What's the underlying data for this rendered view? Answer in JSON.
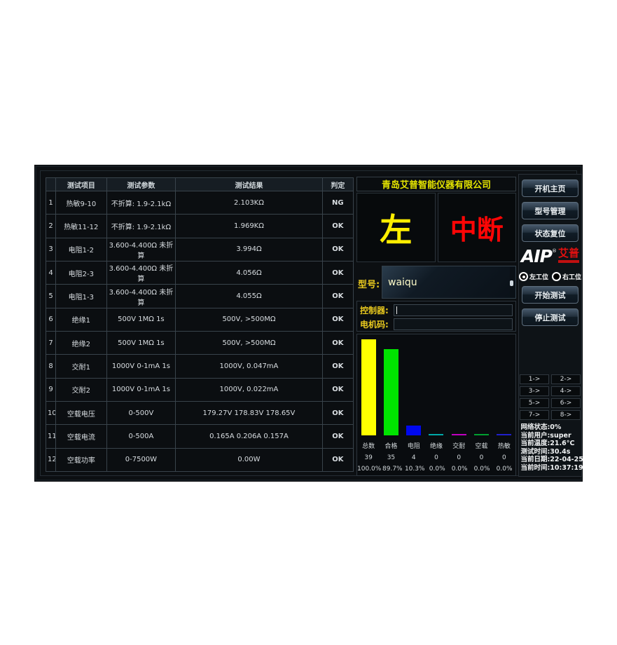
{
  "table": {
    "headers": {
      "item": "测试项目",
      "param": "测试参数",
      "result": "测试结果",
      "judge": "判定"
    },
    "rows": [
      {
        "no": "1",
        "item": "热敏9-10",
        "param": "不折算: 1.9-2.1kΩ",
        "result": "2.103KΩ",
        "judge": "NG"
      },
      {
        "no": "2",
        "item": "热敏11-12",
        "param": "不折算: 1.9-2.1kΩ",
        "result": "1.969KΩ",
        "judge": "OK"
      },
      {
        "no": "3",
        "item": "电阻1-2",
        "param": "3.600-4.400Ω 未折算",
        "result": "3.994Ω",
        "judge": "OK"
      },
      {
        "no": "4",
        "item": "电阻2-3",
        "param": "3.600-4.400Ω 未折算",
        "result": "4.056Ω",
        "judge": "OK"
      },
      {
        "no": "5",
        "item": "电阻1-3",
        "param": "3.600-4.400Ω 未折算",
        "result": "4.055Ω",
        "judge": "OK"
      },
      {
        "no": "6",
        "item": "绝缘1",
        "param": "500V 1MΩ 1s",
        "result": "500V, >500MΩ",
        "judge": "OK"
      },
      {
        "no": "7",
        "item": "绝缘2",
        "param": "500V 1MΩ 1s",
        "result": "500V, >500MΩ",
        "judge": "OK"
      },
      {
        "no": "8",
        "item": "交耐1",
        "param": "1000V 0-1mA 1s",
        "result": "1000V, 0.047mA",
        "judge": "OK",
        "highlight": true
      },
      {
        "no": "9",
        "item": "交耐2",
        "param": "1000V 0-1mA 1s",
        "result": "1000V, 0.022mA",
        "judge": "OK"
      },
      {
        "no": "10",
        "item": "空载电压",
        "param": "0-500V",
        "result": "179.27V  178.83V  178.65V",
        "judge": "OK"
      },
      {
        "no": "11",
        "item": "空载电流",
        "param": "0-500A",
        "result": "0.165A  0.206A  0.157A",
        "judge": "OK"
      },
      {
        "no": "12",
        "item": "空载功率",
        "param": "0-7500W",
        "result": "0.00W",
        "judge": "OK"
      }
    ]
  },
  "center": {
    "company": "青岛艾普智能仪器有限公司",
    "station_text": "左",
    "interrupt_text": "中断",
    "model_label": "型号:",
    "model_value": "waiqu",
    "controller_label": "控制器:",
    "motor_label": "电机码:"
  },
  "chart_data": {
    "type": "bar",
    "categories": [
      "总数",
      "合格",
      "电阻",
      "绝缘",
      "交耐",
      "空载",
      "热敏"
    ],
    "values": [
      39,
      35,
      4,
      0,
      0,
      0,
      0
    ],
    "percentages": [
      "100.0%",
      "89.7%",
      "10.3%",
      "0.0%",
      "0.0%",
      "0.0%",
      "0.0%"
    ],
    "colors": [
      "#ffff00",
      "#00e400",
      "#0008ee",
      "#00a8a8",
      "#c000c0",
      "#00a030",
      "#2020cc"
    ],
    "title": "",
    "xlabel": "",
    "ylabel": "",
    "ylim": [
      0,
      39
    ],
    "legend": "none",
    "grid": false
  },
  "sidebar": {
    "buttons_top": [
      "开机主页",
      "型号管理",
      "状态复位"
    ],
    "logo_text": "AIP",
    "logo_reg": "®",
    "logo_cn": "艾普",
    "station_left": "左工位",
    "station_right": "右工位",
    "start_button": "开始测试",
    "stop_button": "停止测试",
    "channels": [
      "1->",
      "2->",
      "3->",
      "4->",
      "5->",
      "6->",
      "7->",
      "8->"
    ],
    "status_lines": [
      "网络状态:0%",
      "当前用户:super",
      "当前温度:21.6°C",
      "测试时间:30.4s",
      "当前日期:22-04-25",
      "当前时间:10:37:19"
    ]
  }
}
